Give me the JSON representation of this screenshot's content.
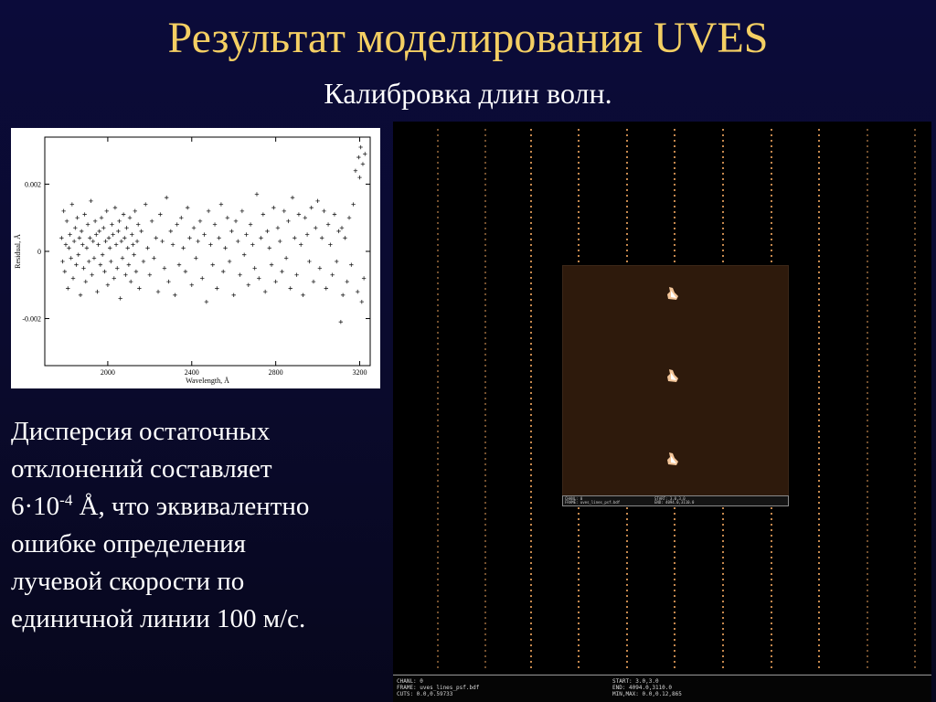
{
  "slide": {
    "title": "Результат моделирования UVES",
    "subtitle": "Калибровка длин волн."
  },
  "body_text": {
    "line1": "Дисперсия остаточных",
    "line2": "отклонений составляет",
    "line3_pre": "6·10",
    "line3_sup": "-4",
    "line3_post": " Å, что эквивалентно",
    "line4": "ошибке определения",
    "line5": "лучевой скорости по",
    "line6": "единичной линии 100 м/с."
  },
  "chart_data": {
    "type": "scatter",
    "marker": "+",
    "xlabel": "Wavelength, Å",
    "ylabel": "Residual, Å",
    "xlim": [
      1700,
      3250
    ],
    "ylim": [
      -0.0034,
      0.0034
    ],
    "x_ticks": [
      2000,
      2400,
      2800,
      3200
    ],
    "x_tick_labels": [
      "2000",
      "2400",
      "2800",
      "3200"
    ],
    "y_ticks": [
      0.002,
      0,
      -0.002
    ],
    "y_tick_labels": [
      "0.002",
      "0",
      "-0.002"
    ],
    "points": [
      [
        1780,
        0.0004
      ],
      [
        1785,
        -0.0003
      ],
      [
        1790,
        0.0012
      ],
      [
        1795,
        -0.0006
      ],
      [
        1800,
        0.0002
      ],
      [
        1805,
        0.0009
      ],
      [
        1810,
        -0.0011
      ],
      [
        1815,
        0.0001
      ],
      [
        1820,
        0.0005
      ],
      [
        1825,
        -0.0002
      ],
      [
        1830,
        0.0014
      ],
      [
        1835,
        -0.0008
      ],
      [
        1840,
        0.0003
      ],
      [
        1845,
        0.0007
      ],
      [
        1850,
        -0.0004
      ],
      [
        1855,
        0.001
      ],
      [
        1860,
        -0.0001
      ],
      [
        1865,
        0.0004
      ],
      [
        1870,
        -0.0013
      ],
      [
        1875,
        0.0006
      ],
      [
        1880,
        0.0002
      ],
      [
        1885,
        -0.0005
      ],
      [
        1890,
        0.0011
      ],
      [
        1895,
        -0.0009
      ],
      [
        1900,
        0.0001
      ],
      [
        1905,
        0.0008
      ],
      [
        1910,
        -0.0003
      ],
      [
        1915,
        0.0004
      ],
      [
        1920,
        0.0015
      ],
      [
        1925,
        -0.0007
      ],
      [
        1930,
        0.0003
      ],
      [
        1935,
        -0.0002
      ],
      [
        1940,
        0.0009
      ],
      [
        1945,
        0.0005
      ],
      [
        1950,
        -0.0012
      ],
      [
        1955,
        0.0002
      ],
      [
        1960,
        0.0006
      ],
      [
        1965,
        -0.0004
      ],
      [
        1970,
        0.001
      ],
      [
        1975,
        -0.0001
      ],
      [
        1980,
        0.0007
      ],
      [
        1985,
        -0.0006
      ],
      [
        1990,
        0.0003
      ],
      [
        1995,
        0.0012
      ],
      [
        2000,
        -0.001
      ],
      [
        2005,
        0.0004
      ],
      [
        2010,
        0.0001
      ],
      [
        2015,
        -0.0003
      ],
      [
        2020,
        0.0008
      ],
      [
        2025,
        0.0005
      ],
      [
        2030,
        -0.0008
      ],
      [
        2035,
        0.0013
      ],
      [
        2040,
        0.0002
      ],
      [
        2045,
        -0.0005
      ],
      [
        2050,
        0.0006
      ],
      [
        2055,
        0.0009
      ],
      [
        2060,
        -0.0014
      ],
      [
        2065,
        0.0003
      ],
      [
        2070,
        -0.0002
      ],
      [
        2075,
        0.0011
      ],
      [
        2080,
        0.0004
      ],
      [
        2085,
        -0.0007
      ],
      [
        2090,
        0.0007
      ],
      [
        2095,
        0.0001
      ],
      [
        2100,
        -0.0004
      ],
      [
        2105,
        0.001
      ],
      [
        2110,
        -0.0009
      ],
      [
        2115,
        0.0005
      ],
      [
        2120,
        0.0002
      ],
      [
        2125,
        -0.0001
      ],
      [
        2130,
        0.0012
      ],
      [
        2135,
        -0.0006
      ],
      [
        2140,
        0.0003
      ],
      [
        2145,
        0.0008
      ],
      [
        2150,
        -0.0011
      ],
      [
        2160,
        0.0006
      ],
      [
        2170,
        -0.0003
      ],
      [
        2180,
        0.0014
      ],
      [
        2190,
        0.0001
      ],
      [
        2200,
        -0.0007
      ],
      [
        2210,
        0.0009
      ],
      [
        2220,
        -0.0002
      ],
      [
        2230,
        0.0004
      ],
      [
        2240,
        -0.0012
      ],
      [
        2250,
        0.0011
      ],
      [
        2260,
        0.0003
      ],
      [
        2270,
        -0.0005
      ],
      [
        2280,
        0.0016
      ],
      [
        2290,
        -0.0009
      ],
      [
        2300,
        0.0006
      ],
      [
        2310,
        0.0002
      ],
      [
        2320,
        -0.0013
      ],
      [
        2330,
        0.0008
      ],
      [
        2340,
        -0.0004
      ],
      [
        2350,
        0.001
      ],
      [
        2360,
        0.0001
      ],
      [
        2370,
        -0.0006
      ],
      [
        2380,
        0.0013
      ],
      [
        2390,
        0.0004
      ],
      [
        2400,
        -0.001
      ],
      [
        2410,
        0.0007
      ],
      [
        2420,
        -0.0002
      ],
      [
        2430,
        0.0003
      ],
      [
        2440,
        0.0009
      ],
      [
        2450,
        -0.0008
      ],
      [
        2460,
        0.0005
      ],
      [
        2470,
        -0.0015
      ],
      [
        2480,
        0.0012
      ],
      [
        2490,
        0.0002
      ],
      [
        2500,
        -0.0004
      ],
      [
        2510,
        0.0008
      ],
      [
        2520,
        -0.0011
      ],
      [
        2530,
        0.0004
      ],
      [
        2540,
        0.0014
      ],
      [
        2550,
        -0.0006
      ],
      [
        2560,
        0.0001
      ],
      [
        2570,
        0.001
      ],
      [
        2580,
        -0.0003
      ],
      [
        2590,
        0.0006
      ],
      [
        2600,
        -0.0013
      ],
      [
        2610,
        0.0009
      ],
      [
        2620,
        0.0003
      ],
      [
        2630,
        -0.0007
      ],
      [
        2640,
        0.0012
      ],
      [
        2650,
        -0.0001
      ],
      [
        2660,
        0.0005
      ],
      [
        2670,
        -0.001
      ],
      [
        2680,
        0.0008
      ],
      [
        2690,
        0.0002
      ],
      [
        2700,
        -0.0005
      ],
      [
        2710,
        0.0017
      ],
      [
        2720,
        -0.0008
      ],
      [
        2730,
        0.0004
      ],
      [
        2740,
        0.0011
      ],
      [
        2750,
        -0.0012
      ],
      [
        2760,
        0.0006
      ],
      [
        2770,
        0.0001
      ],
      [
        2780,
        -0.0004
      ],
      [
        2790,
        0.0013
      ],
      [
        2800,
        -0.0009
      ],
      [
        2810,
        0.0007
      ],
      [
        2820,
        0.0003
      ],
      [
        2830,
        -0.0006
      ],
      [
        2840,
        0.0012
      ],
      [
        2850,
        -0.0002
      ],
      [
        2860,
        0.0009
      ],
      [
        2870,
        -0.0011
      ],
      [
        2880,
        0.0016
      ],
      [
        2890,
        0.0004
      ],
      [
        2900,
        -0.0007
      ],
      [
        2910,
        0.0011
      ],
      [
        2920,
        0.0002
      ],
      [
        2930,
        -0.0013
      ],
      [
        2940,
        0.001
      ],
      [
        2950,
        0.0005
      ],
      [
        2960,
        -0.0003
      ],
      [
        2970,
        0.0013
      ],
      [
        2980,
        -0.0009
      ],
      [
        2990,
        0.0007
      ],
      [
        3000,
        0.0015
      ],
      [
        3010,
        -0.0005
      ],
      [
        3020,
        0.0004
      ],
      [
        3030,
        0.0012
      ],
      [
        3040,
        -0.0011
      ],
      [
        3050,
        0.0008
      ],
      [
        3060,
        0.0002
      ],
      [
        3070,
        -0.0007
      ],
      [
        3080,
        0.0011
      ],
      [
        3090,
        -0.0003
      ],
      [
        3100,
        0.0006
      ],
      [
        3110,
        -0.0021
      ],
      [
        3115,
        0.0007
      ],
      [
        3120,
        -0.0013
      ],
      [
        3130,
        0.0004
      ],
      [
        3140,
        -0.0009
      ],
      [
        3150,
        0.001
      ],
      [
        3160,
        -0.0004
      ],
      [
        3170,
        0.0014
      ],
      [
        3180,
        0.0024
      ],
      [
        3190,
        -0.0012
      ],
      [
        3195,
        0.0028
      ],
      [
        3200,
        0.0022
      ],
      [
        3205,
        0.0031
      ],
      [
        3210,
        -0.0015
      ],
      [
        3215,
        0.0026
      ],
      [
        3220,
        -0.0008
      ],
      [
        3225,
        0.0029
      ]
    ]
  },
  "spectrum": {
    "strip_color": "#e9a05b",
    "zoom_background": "#2e1a0c",
    "zoom_info": {
      "left_line1": "CHANL: 0",
      "left_line2": "FRAME: uves_lines_psf.bdf",
      "right_line1": "START: 3.0,3.0",
      "right_line2": "END: 4094.0,3110.0"
    },
    "status": {
      "left": [
        "CHANL: 0",
        "FRAME: uves_lines_psf.bdf",
        "CUTS: 0.0,0.59733"
      ],
      "right": [
        "START: 3.0,3.0",
        "END: 4094.0,3110.0",
        "MIN,MAX: 0.0,0.12,865"
      ]
    }
  }
}
